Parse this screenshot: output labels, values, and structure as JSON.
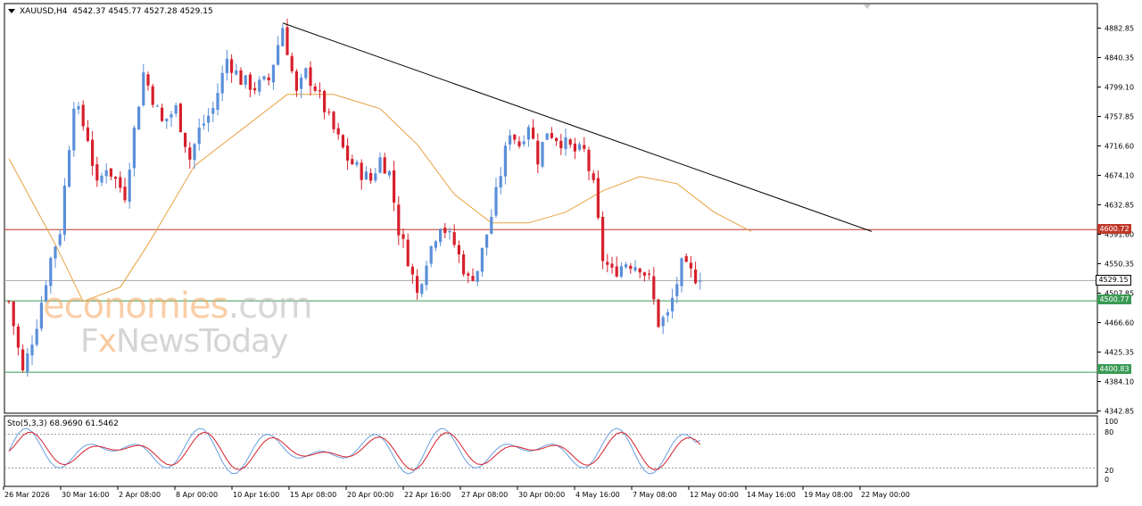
{
  "header": {
    "symbol": "XAUUSD,H4",
    "ohlc": "4542.37 4545.77 4527.28 4529.15"
  },
  "oscillator": {
    "title": "Sto(5,3,3) 68.9690 61.5462",
    "levels": [
      "100",
      "80",
      "20",
      "0"
    ]
  },
  "watermark": {
    "economies": "economies",
    "dotcom": ".com",
    "fx_left": "F",
    "fx_x": "x",
    "fx_right": "NewsToday"
  },
  "price_axis_labels": [
    "4882.85",
    "4840.35",
    "4799.10",
    "4757.85",
    "4716.60",
    "4674.10",
    "4632.85",
    "4591.60",
    "4550.35",
    "4507.85",
    "4466.60",
    "4425.35",
    "4384.10",
    "4342.85"
  ],
  "time_axis_labels": [
    "26 Mar 2026",
    "30 Mar 16:00",
    "2 Apr 08:00",
    "8 Apr 00:00",
    "10 Apr 16:00",
    "15 Apr 08:00",
    "20 Apr 00:00",
    "22 Apr 16:00",
    "27 Apr 08:00",
    "30 Apr 00:00",
    "4 May 16:00",
    "7 May 08:00",
    "12 May 00:00",
    "14 May 16:00",
    "19 May 08:00",
    "22 May 00:00"
  ],
  "price_badges": {
    "resistance": "4600.72",
    "current": "4529.15",
    "support1": "4500.77",
    "support2": "4400.83"
  },
  "colors": {
    "bull": "#5b8fd9",
    "bear": "#d6202c",
    "ma": "#e8a040",
    "resistance": "#c0392b",
    "support": "#3a9a55",
    "current_line": "#b0b0b0"
  },
  "chart_data": {
    "type": "candlestick",
    "symbol": "XAUUSD",
    "timeframe": "H4",
    "ylim": [
      4342.85,
      4900
    ],
    "horizontal_levels": [
      {
        "label": "4600.72",
        "value": 4600.72,
        "color": "#c0392b"
      },
      {
        "label": "4529.15",
        "value": 4529.15,
        "color": "#b0b0b0"
      },
      {
        "label": "4500.77",
        "value": 4500.77,
        "color": "#3a9a55"
      },
      {
        "label": "4400.83",
        "value": 4400.83,
        "color": "#3a9a55"
      }
    ],
    "trendline": {
      "from": {
        "bar": 59,
        "price": 4890
      },
      "to": {
        "bar": 186,
        "price": 4598
      }
    },
    "moving_average_path": [
      [
        0,
        4700
      ],
      [
        10,
        4580
      ],
      [
        16,
        4500
      ],
      [
        24,
        4520
      ],
      [
        30,
        4580
      ],
      [
        40,
        4690
      ],
      [
        50,
        4740
      ],
      [
        60,
        4790
      ],
      [
        70,
        4790
      ],
      [
        80,
        4770
      ],
      [
        88,
        4720
      ],
      [
        96,
        4650
      ],
      [
        104,
        4610
      ],
      [
        112,
        4610
      ],
      [
        120,
        4625
      ],
      [
        128,
        4655
      ],
      [
        136,
        4675
      ],
      [
        144,
        4665
      ],
      [
        152,
        4625
      ],
      [
        160,
        4598
      ]
    ],
    "price_path": [
      [
        0,
        4500
      ],
      [
        3,
        4400
      ],
      [
        6,
        4470
      ],
      [
        9,
        4560
      ],
      [
        11,
        4600
      ],
      [
        14,
        4780
      ],
      [
        17,
        4730
      ],
      [
        19,
        4660
      ],
      [
        21,
        4690
      ],
      [
        25,
        4650
      ],
      [
        27,
        4740
      ],
      [
        29,
        4820
      ],
      [
        33,
        4750
      ],
      [
        36,
        4770
      ],
      [
        39,
        4700
      ],
      [
        41,
        4740
      ],
      [
        44,
        4770
      ],
      [
        47,
        4840
      ],
      [
        50,
        4810
      ],
      [
        53,
        4800
      ],
      [
        56,
        4810
      ],
      [
        59,
        4885
      ],
      [
        62,
        4790
      ],
      [
        64,
        4820
      ],
      [
        66,
        4800
      ],
      [
        70,
        4740
      ],
      [
        73,
        4700
      ],
      [
        76,
        4680
      ],
      [
        78,
        4670
      ],
      [
        80,
        4700
      ],
      [
        82,
        4680
      ],
      [
        84,
        4600
      ],
      [
        86,
        4560
      ],
      [
        88,
        4510
      ],
      [
        90,
        4560
      ],
      [
        93,
        4610
      ],
      [
        96,
        4580
      ],
      [
        99,
        4530
      ],
      [
        101,
        4545
      ],
      [
        104,
        4620
      ],
      [
        106,
        4680
      ],
      [
        108,
        4740
      ],
      [
        110,
        4720
      ],
      [
        112,
        4750
      ],
      [
        114,
        4700
      ],
      [
        116,
        4740
      ],
      [
        118,
        4730
      ],
      [
        120,
        4720
      ],
      [
        122,
        4710
      ],
      [
        124,
        4710
      ],
      [
        126,
        4660
      ],
      [
        128,
        4560
      ],
      [
        130,
        4540
      ],
      [
        133,
        4555
      ],
      [
        136,
        4550
      ],
      [
        138,
        4530
      ],
      [
        140,
        4470
      ],
      [
        142,
        4480
      ],
      [
        145,
        4550
      ],
      [
        147,
        4540
      ],
      [
        149,
        4529
      ]
    ],
    "stochastic": {
      "params": "5,3,3",
      "k": 68.969,
      "d": 61.5462,
      "levels": [
        80,
        20
      ]
    }
  }
}
